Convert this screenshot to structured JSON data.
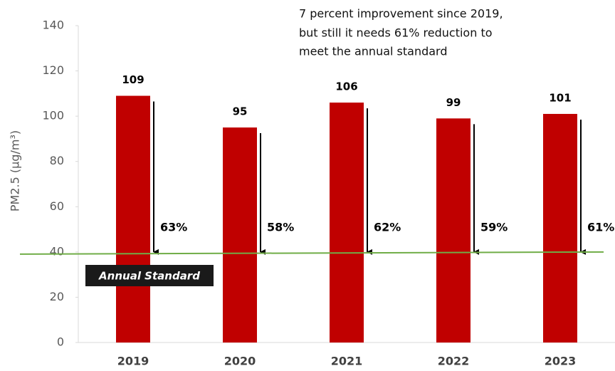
{
  "chart_data": {
    "type": "bar",
    "y_label": "PM2.5 (μg/m³)",
    "annotation": [
      "7 percent improvement since 2019,",
      "but still it needs 61% reduction to",
      "meet the annual standard"
    ],
    "categories": [
      "2019",
      "2020",
      "2021",
      "2022",
      "2023"
    ],
    "values": [
      109,
      95,
      106,
      99,
      101
    ],
    "color": "#c00000",
    "ylim": [
      0,
      140
    ],
    "yticks": [
      0,
      20,
      40,
      60,
      80,
      100,
      120,
      140
    ],
    "annual_standard": {
      "label": "Annual Standard",
      "value": 40,
      "color": "#70ad47"
    },
    "reductions": {
      "values": [
        63,
        58,
        62,
        59,
        61
      ],
      "value_labels": [
        "63%",
        "58%",
        "62%",
        "59%",
        "61%"
      ]
    }
  }
}
